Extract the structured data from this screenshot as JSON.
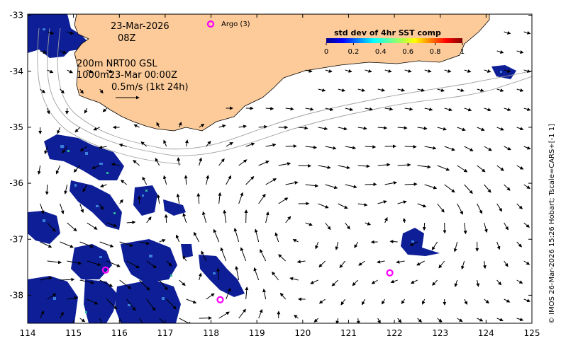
{
  "map": {
    "date_line1": "23-Mar-2026",
    "date_line2": "08Z",
    "legend_argo": "Argo (3)",
    "line_200m": "200m  NRT00 GSL",
    "line_1000m": "1000m23-Mar 00:00Z",
    "scale_label": "0.5m/s (1kt 24h)",
    "credit": "© IMOS 26-Mar-2026 15:26 Hobart; Tscale=CARS+[-1 1]",
    "colorbar": {
      "title": "std dev of 4hr SST comp",
      "ticks": [
        "0",
        "0.2",
        "0.4",
        "0.6",
        "0.8",
        "1"
      ]
    },
    "x_ticks": [
      "114",
      "115",
      "116",
      "117",
      "118",
      "119",
      "120",
      "121",
      "122",
      "123",
      "124",
      "125"
    ],
    "y_ticks": [
      "-33",
      "-34",
      "-35",
      "-36",
      "-37",
      "-38"
    ],
    "argo_floats": [
      {
        "lon": 115.7,
        "lat": -37.55
      },
      {
        "lon": 118.2,
        "lat": -38.08
      },
      {
        "lon": 121.9,
        "lat": -37.6
      }
    ],
    "colors": {
      "land": "#fdcb99",
      "argo": "#ff00ff",
      "data_low": "#0a1a8c",
      "isobath": "#999999"
    }
  }
}
